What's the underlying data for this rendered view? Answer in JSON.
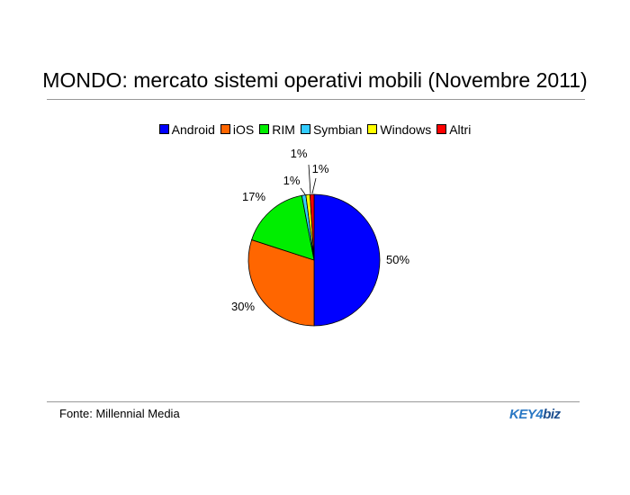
{
  "title": "MONDO: mercato sistemi operativi mobili (Novembre 2011)",
  "source": "Fonte: Millennial Media",
  "logo": {
    "part1": "KEY4",
    "part2": "biz"
  },
  "chart_data": {
    "type": "pie",
    "categories": [
      "Android",
      "iOS",
      "RIM",
      "Symbian",
      "Windows",
      "Altri"
    ],
    "values": [
      50,
      30,
      17,
      1,
      1,
      1
    ],
    "data_labels": [
      "50%",
      "30%",
      "17%",
      "1%",
      "1%",
      "1%"
    ],
    "colors": [
      "#0000ff",
      "#ff6600",
      "#00ee00",
      "#33ccff",
      "#ffff00",
      "#ff0000"
    ],
    "title": "MONDO: mercato sistemi operativi mobili (Novembre 2011)",
    "legend_position": "top"
  }
}
